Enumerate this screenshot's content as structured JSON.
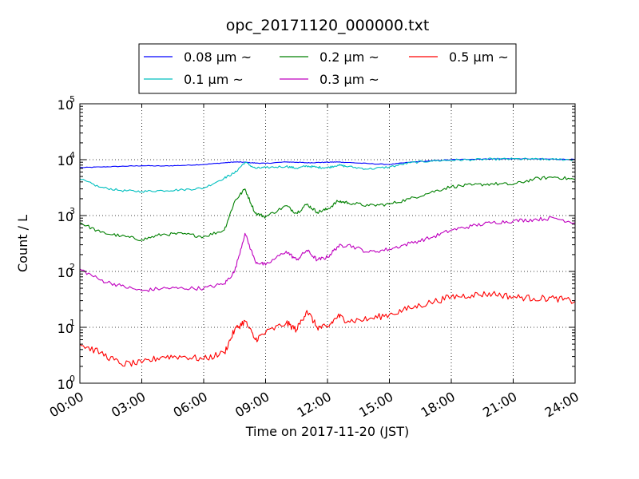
{
  "chart_data": {
    "type": "line",
    "title": "opc_20171120_000000.txt",
    "xlabel": "Time on 2017-11-20 (JST)",
    "ylabel": "Count / L",
    "yscale": "log",
    "ylim": [
      1,
      100000
    ],
    "xlim": [
      "00:00",
      "24:00"
    ],
    "grid": true,
    "legend_position": "top",
    "x_ticks": [
      "00:00",
      "03:00",
      "06:00",
      "09:00",
      "12:00",
      "15:00",
      "18:00",
      "21:00",
      "24:00"
    ],
    "y_ticks": [
      {
        "base": "10",
        "exp": "0"
      },
      {
        "base": "10",
        "exp": "1"
      },
      {
        "base": "10",
        "exp": "2"
      },
      {
        "base": "10",
        "exp": "3"
      },
      {
        "base": "10",
        "exp": "4"
      },
      {
        "base": "10",
        "exp": "5"
      }
    ],
    "x": [
      "00:00",
      "01:00",
      "02:00",
      "03:00",
      "04:00",
      "05:00",
      "06:00",
      "07:00",
      "07:30",
      "08:00",
      "08:30",
      "09:00",
      "10:00",
      "10:30",
      "11:00",
      "11:30",
      "12:00",
      "12:30",
      "13:00",
      "14:00",
      "15:00",
      "16:00",
      "17:00",
      "18:00",
      "19:00",
      "20:00",
      "21:00",
      "22:00",
      "23:00",
      "24:00"
    ],
    "series": [
      {
        "name": "0.08 μm ~",
        "color": "#0000ff",
        "values": [
          7200,
          7400,
          7600,
          7800,
          7700,
          7900,
          8200,
          8800,
          9100,
          9000,
          8700,
          8600,
          9100,
          9000,
          8800,
          8900,
          9000,
          9100,
          8900,
          8500,
          8200,
          9000,
          9500,
          10000,
          10200,
          10300,
          10400,
          10300,
          10200,
          10100
        ]
      },
      {
        "name": "0.1 μm ~",
        "color": "#00bfbf",
        "values": [
          4500,
          3200,
          2800,
          2700,
          2800,
          2900,
          3100,
          4700,
          5800,
          9000,
          7000,
          7200,
          7600,
          7000,
          7700,
          7300,
          7200,
          8000,
          7500,
          6800,
          7400,
          8800,
          9500,
          9800,
          10000,
          10200,
          10300,
          10200,
          10100,
          10000
        ]
      },
      {
        "name": "0.2 μm ~",
        "color": "#008000",
        "values": [
          750,
          500,
          430,
          370,
          460,
          470,
          420,
          550,
          1800,
          3000,
          1100,
          950,
          1500,
          1100,
          1600,
          1150,
          1300,
          1800,
          1700,
          1500,
          1600,
          2000,
          2600,
          3300,
          3500,
          3700,
          3600,
          4500,
          4900,
          4400
        ]
      },
      {
        "name": "0.3 μm ~",
        "color": "#bf00bf",
        "values": [
          110,
          70,
          55,
          45,
          50,
          50,
          50,
          60,
          100,
          480,
          150,
          130,
          230,
          160,
          240,
          160,
          180,
          280,
          300,
          220,
          250,
          320,
          400,
          550,
          650,
          750,
          800,
          850,
          900,
          750
        ]
      },
      {
        "name": "0.5 μm ~",
        "color": "#ff0000",
        "values": [
          5,
          3.5,
          2.2,
          2.3,
          3.0,
          3.0,
          2.7,
          3.5,
          9,
          13,
          6,
          8,
          12,
          9,
          20,
          10,
          10,
          16,
          13,
          14,
          17,
          22,
          28,
          35,
          38,
          40,
          35,
          33,
          33,
          29
        ]
      }
    ]
  }
}
